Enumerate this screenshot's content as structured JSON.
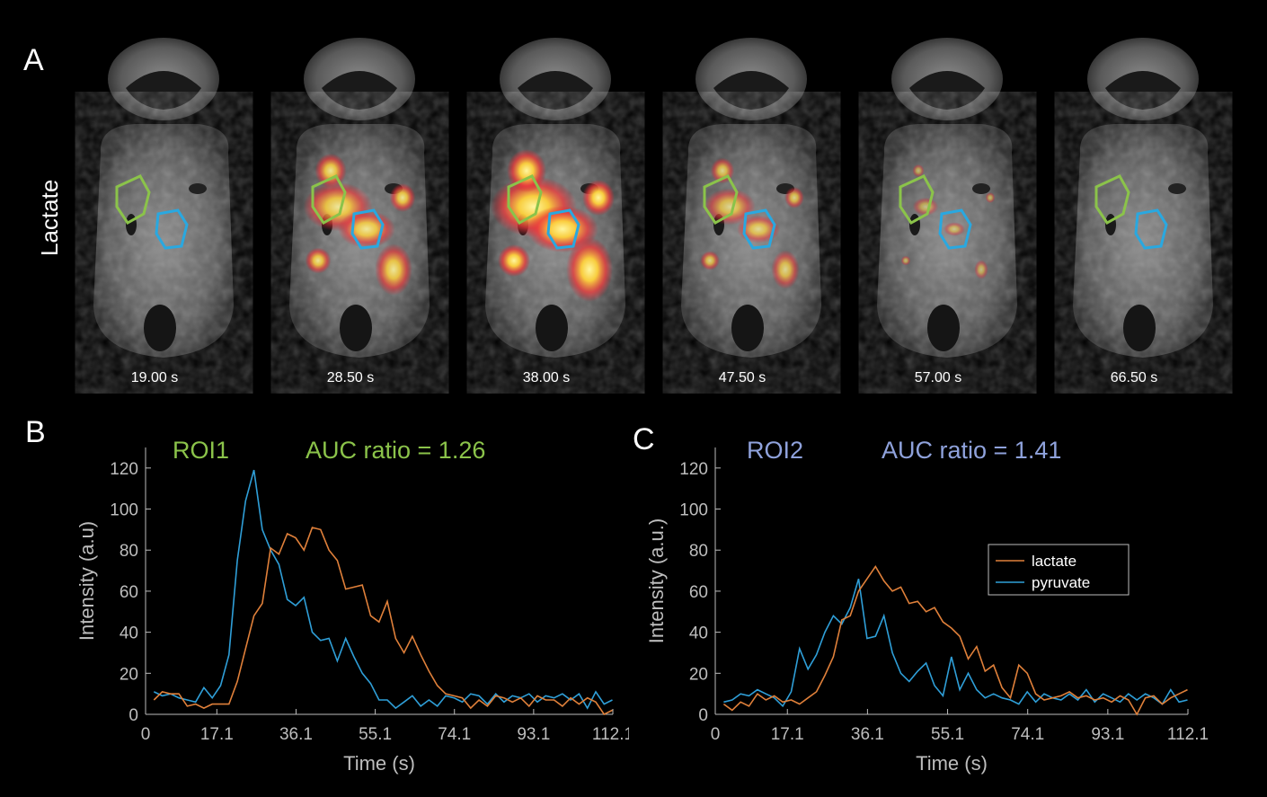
{
  "panel_a": {
    "letter": "A",
    "row_label": "Lactate",
    "frames": [
      {
        "time": "19.00 s",
        "intensity": 0.0
      },
      {
        "time": "28.50 s",
        "intensity": 0.8
      },
      {
        "time": "38.00 s",
        "intensity": 1.0
      },
      {
        "time": "47.50 s",
        "intensity": 0.6
      },
      {
        "time": "57.00 s",
        "intensity": 0.3
      },
      {
        "time": "66.50 s",
        "intensity": 0.0
      }
    ],
    "roi_colors": {
      "roi1": "#8BC34A",
      "roi2": "#29A8E0"
    }
  },
  "colors": {
    "lactate": "#E0803A",
    "pyruvate": "#2F9FD8",
    "roi1_text": "#8BC34A",
    "roi2_text": "#8FA2DC",
    "axis": "#BDBDBD"
  },
  "chart_data": [
    {
      "type": "line",
      "panel": "B",
      "roi_label": "ROI1",
      "auc_text": "AUC ratio = 1.26",
      "xlabel": "Time (s)",
      "ylabel": "Intensity (a.u)",
      "xlim": [
        0,
        112.1
      ],
      "ylim": [
        0,
        130
      ],
      "xticks": [
        "0",
        "17.1",
        "36.1",
        "55.1",
        "74.1",
        "93.1",
        "112.1"
      ],
      "xtick_values": [
        0,
        17.1,
        36.1,
        55.1,
        74.1,
        93.1,
        112.1
      ],
      "yticks": [
        0,
        20,
        40,
        60,
        80,
        100,
        120
      ],
      "legend": false,
      "x": [
        2,
        4,
        6,
        8,
        10,
        12,
        14,
        16,
        18,
        20,
        22,
        24,
        26,
        28,
        30,
        32,
        34,
        36,
        38,
        40,
        42,
        44,
        46,
        48,
        50,
        52,
        54,
        56,
        58,
        60,
        62,
        64,
        66,
        68,
        70,
        72,
        74,
        76,
        78,
        80,
        82,
        84,
        86,
        88,
        90,
        92,
        94,
        96,
        98,
        100,
        102,
        104,
        106,
        108,
        110,
        112
      ],
      "series": [
        {
          "name": "lactate",
          "values": [
            7,
            11,
            10,
            10,
            4,
            5,
            3,
            5,
            5,
            5,
            16,
            32,
            48,
            54,
            81,
            78,
            88,
            86,
            80,
            91,
            90,
            80,
            75,
            61,
            62,
            63,
            48,
            45,
            55,
            37,
            30,
            38,
            29,
            21,
            14,
            10,
            9,
            8,
            3,
            7,
            4,
            9,
            8,
            6,
            8,
            4,
            9,
            7,
            7,
            4,
            8,
            5,
            8,
            6,
            0,
            2
          ]
        },
        {
          "name": "pyruvate",
          "values": [
            11,
            9,
            10,
            8,
            7,
            6,
            13,
            8,
            14,
            29,
            75,
            104,
            119,
            90,
            80,
            73,
            56,
            53,
            57,
            40,
            36,
            37,
            26,
            37,
            28,
            20,
            15,
            7,
            7,
            3,
            6,
            9,
            4,
            7,
            4,
            9,
            8,
            6,
            10,
            9,
            5,
            10,
            6,
            9,
            8,
            10,
            6,
            9,
            8,
            10,
            7,
            10,
            3,
            11,
            5,
            7
          ]
        }
      ]
    },
    {
      "type": "line",
      "panel": "C",
      "roi_label": "ROI2",
      "auc_text": "AUC ratio = 1.41",
      "xlabel": "Time (s)",
      "ylabel": "Intensity (a.u.)",
      "xlim": [
        0,
        112.1
      ],
      "ylim": [
        0,
        130
      ],
      "xticks": [
        "0",
        "17.1",
        "36.1",
        "55.1",
        "74.1",
        "93.1",
        "112.1"
      ],
      "xtick_values": [
        0,
        17.1,
        36.1,
        55.1,
        74.1,
        93.1,
        112.1
      ],
      "yticks": [
        0,
        20,
        40,
        60,
        80,
        100,
        120
      ],
      "legend": true,
      "legend_position": "top-right",
      "legend_entries": [
        "lactate",
        "pyruvate"
      ],
      "x": [
        2,
        4,
        6,
        8,
        10,
        12,
        14,
        16,
        18,
        20,
        22,
        24,
        26,
        28,
        30,
        32,
        34,
        36,
        38,
        40,
        42,
        44,
        46,
        48,
        50,
        52,
        54,
        56,
        58,
        60,
        62,
        64,
        66,
        68,
        70,
        72,
        74,
        76,
        78,
        80,
        82,
        84,
        86,
        88,
        90,
        92,
        94,
        96,
        98,
        100,
        102,
        104,
        106,
        108,
        110,
        112
      ],
      "series": [
        {
          "name": "lactate",
          "values": [
            5,
            2,
            6,
            4,
            10,
            7,
            9,
            6,
            7,
            5,
            8,
            11,
            19,
            28,
            46,
            48,
            60,
            66,
            72,
            65,
            60,
            62,
            54,
            55,
            50,
            52,
            45,
            42,
            38,
            27,
            33,
            21,
            24,
            13,
            8,
            24,
            20,
            10,
            7,
            8,
            9,
            11,
            8,
            9,
            7,
            8,
            6,
            9,
            7,
            0,
            8,
            9,
            5,
            8,
            10,
            12
          ]
        },
        {
          "name": "pyruvate",
          "values": [
            6,
            7,
            10,
            9,
            12,
            10,
            8,
            4,
            11,
            32,
            22,
            29,
            40,
            48,
            44,
            52,
            66,
            37,
            38,
            48,
            30,
            20,
            16,
            21,
            25,
            14,
            9,
            28,
            12,
            20,
            12,
            8,
            10,
            8,
            7,
            5,
            11,
            6,
            10,
            8,
            7,
            10,
            7,
            12,
            6,
            10,
            8,
            6,
            10,
            7,
            10,
            8,
            5,
            12,
            6,
            7
          ]
        }
      ]
    }
  ]
}
